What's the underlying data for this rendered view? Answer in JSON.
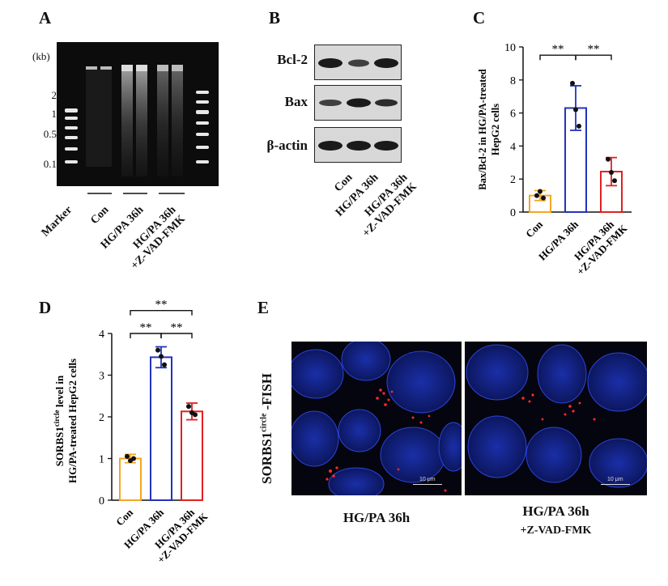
{
  "panels": {
    "A": "A",
    "B": "B",
    "C": "C",
    "D": "D",
    "E": "E"
  },
  "panelA": {
    "unit": "(kb)",
    "marker_ticks": [
      "2",
      "1",
      "0.5",
      "0.1"
    ],
    "lane_labels": [
      "Marker",
      "Con",
      "HG/PA 36h",
      "HG/PA 36h\n+Z-VAD-FMK"
    ]
  },
  "panelB": {
    "proteins": [
      "Bcl-2",
      "Bax",
      "β-actin"
    ],
    "lane_labels": [
      "Con",
      "HG/PA 36h",
      "HG/PA 36h\n+Z-VAD-FMK"
    ]
  },
  "panelE": {
    "ylabel_main": "SORBS1",
    "ylabel_sup": "circle",
    "ylabel_suffix": " -FISH",
    "captions": [
      "HG/PA 36h",
      "HG/PA 36h"
    ],
    "caption2_sub": "+Z-VAD-FMK",
    "scale_text": "10 μm"
  },
  "colors": {
    "con": "#f5a623",
    "hgpa": "#2233bb",
    "zvad": "#e02020"
  },
  "chart_data": [
    {
      "id": "C",
      "type": "bar",
      "categories": [
        "Con",
        "HG/PA 36h",
        "HG/PA 36h +Z-VAD-FMK"
      ],
      "category_lines": [
        [
          "Con"
        ],
        [
          "HG/PA 36h"
        ],
        [
          "HG/PA 36h",
          "+Z-VAD-FMK"
        ]
      ],
      "values": [
        1.0,
        6.3,
        2.45
      ],
      "errors": [
        0.3,
        1.35,
        0.85
      ],
      "points": [
        [
          1.0,
          1.25,
          0.85
        ],
        [
          7.8,
          6.2,
          5.2
        ],
        [
          3.2,
          2.4,
          1.9
        ]
      ],
      "ylabel_lines": [
        "Bax/Bcl-2 in HG/PA-treated",
        "HepG2 cells"
      ],
      "ylim": [
        0,
        10
      ],
      "yticks": [
        0,
        2,
        4,
        6,
        8,
        10
      ],
      "significance": [
        {
          "from": 0,
          "to": 1,
          "label": "**",
          "level": 9.5
        },
        {
          "from": 1,
          "to": 2,
          "label": "**",
          "level": 9.5
        }
      ]
    },
    {
      "id": "D",
      "type": "bar",
      "categories": [
        "Con",
        "HG/PA 36h",
        "HG/PA 36h +Z-VAD-FMK"
      ],
      "category_lines": [
        [
          "Con"
        ],
        [
          "HG/PA 36h"
        ],
        [
          "HG/PA 36h",
          "+Z-VAD-FMK"
        ]
      ],
      "values": [
        1.0,
        3.43,
        2.13
      ],
      "errors": [
        0.1,
        0.25,
        0.2
      ],
      "points": [
        [
          1.05,
          0.95,
          1.0
        ],
        [
          3.6,
          3.45,
          3.25
        ],
        [
          2.25,
          2.1,
          2.05
        ]
      ],
      "ylabel_main": "SORBS1",
      "ylabel_sup": "circle",
      "ylabel_rest": " level in",
      "ylabel_line2": "HG/PA-treated HepG2 cells",
      "ylim": [
        0,
        4
      ],
      "yticks": [
        0,
        1,
        2,
        3,
        4
      ],
      "significance": [
        {
          "from": 0,
          "to": 2,
          "label": "**",
          "level": 4.55
        },
        {
          "from": 0,
          "to": 1,
          "label": "**",
          "level": 4.0
        },
        {
          "from": 1,
          "to": 2,
          "label": "**",
          "level": 4.0
        }
      ]
    }
  ]
}
